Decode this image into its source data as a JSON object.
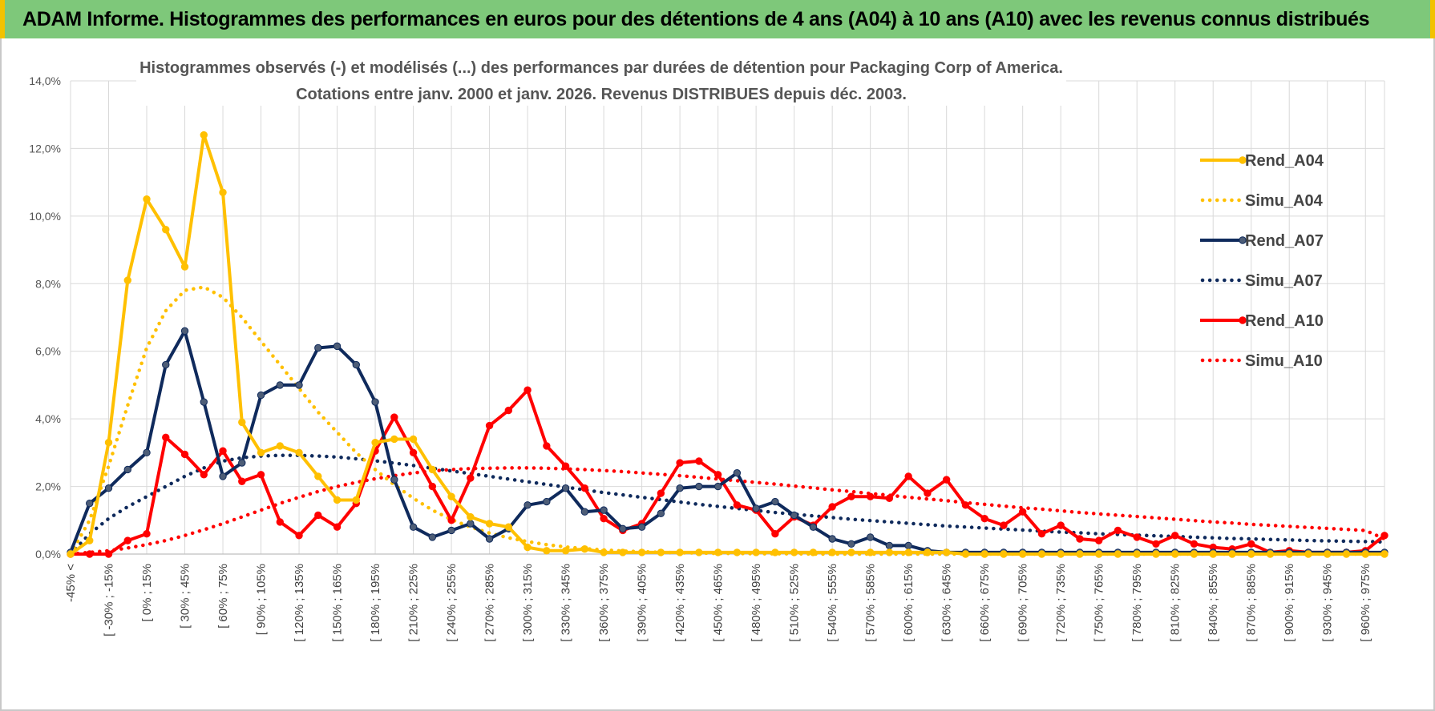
{
  "banner": {
    "title": "ADAM Informe. Histogrammes des performances en euros pour des détentions de 4 ans (A04) à 10 ans (A10) avec les revenus connus distribués"
  },
  "colors": {
    "banner_bg": "#7ec87a",
    "banner_accent": "#f2c200",
    "A04": "#ffc000",
    "A07": "#0f2a5c",
    "A10": "#ff0000",
    "grid": "#d9d9d9"
  },
  "chart_data": {
    "type": "line",
    "title_line1": "Histogrammes observés (-) et modélisés (...) des performances par durées de détention pour Packaging Corp of America.",
    "title_line2": "Cotations entre janv. 2000 et janv. 2026. Revenus DISTRIBUES depuis déc. 2003.",
    "ylim": [
      0,
      14
    ],
    "yticks": [
      "0,0%",
      "2,0%",
      "4,0%",
      "6,0%",
      "8,0%",
      "10,0%",
      "12,0%",
      "14,0%"
    ],
    "x_labels": [
      "-45% <",
      "[ -30% ; -15%",
      "[ 0% ; 15%",
      "[ 30% ; 45%",
      "[ 60% ; 75%",
      "[ 90% ; 105%",
      "[ 120% ; 135%",
      "[ 150% ; 165%",
      "[ 180% ; 195%",
      "[ 210% ; 225%",
      "[ 240% ; 255%",
      "[ 270% ; 285%",
      "[ 300% ; 315%",
      "[ 330% ; 345%",
      "[ 360% ; 375%",
      "[ 390% ; 405%",
      "[ 420% ; 435%",
      "[ 450% ; 465%",
      "[ 480% ; 495%",
      "[ 510% ; 525%",
      "[ 540% ; 555%",
      "[ 570% ; 585%",
      "[ 600% ; 615%",
      "[ 630% ; 645%",
      "[ 660% ; 675%",
      "[ 690% ; 705%",
      "[ 720% ; 735%",
      "[ 750% ; 765%",
      "[ 780% ; 795%",
      "[ 810% ; 825%",
      "[ 840% ; 855%",
      "[ 870% ; 885%",
      "[ 900% ; 915%",
      "[ 930% ; 945%",
      "[ 960% ; 975%"
    ],
    "n_points": 70,
    "series": [
      {
        "name": "Rend_A04",
        "style": "solid",
        "color": "#ffc000",
        "values": [
          0.0,
          0.4,
          3.3,
          8.1,
          10.5,
          9.6,
          8.5,
          12.4,
          10.7,
          3.9,
          3.0,
          3.2,
          3.0,
          2.3,
          1.6,
          1.6,
          3.3,
          3.4,
          3.4,
          2.5,
          1.7,
          1.1,
          0.9,
          0.8,
          0.2,
          0.1,
          0.1,
          0.15,
          0.05,
          0.05,
          0.05,
          0.05,
          0.05,
          0.05,
          0.05,
          0.05,
          0.05,
          0.05,
          0.05,
          0.05,
          0.05,
          0.05,
          0.05,
          0.05,
          0.05,
          0.05,
          0.05,
          0.0,
          0.0,
          0.0,
          0.0,
          0.0,
          0.0,
          0.0,
          0.0,
          0.0,
          0.0,
          0.0,
          0.0,
          0.0,
          0.0,
          0.0,
          0.0,
          0.0,
          0.0,
          0.0,
          0.0,
          0.0,
          0.0,
          0.0
        ]
      },
      {
        "name": "Simu_A04",
        "style": "dotted",
        "color": "#ffc000",
        "values": [
          0.0,
          1.0,
          2.6,
          4.4,
          6.1,
          7.2,
          7.8,
          7.9,
          7.6,
          7.0,
          6.3,
          5.6,
          4.9,
          4.2,
          3.6,
          3.0,
          2.5,
          2.05,
          1.65,
          1.3,
          1.02,
          0.8,
          0.62,
          0.48,
          0.37,
          0.28,
          0.21,
          0.16,
          0.12,
          0.09,
          0.07,
          0.05,
          0.04,
          0.03,
          0.02,
          0.02,
          0.01,
          0.01,
          0.01,
          0.0,
          0.0,
          0.0,
          0.0,
          0.0,
          0.0,
          0.0,
          0.0,
          0.0,
          0.0,
          0.0,
          0.0,
          0.0,
          0.0,
          0.0,
          0.0,
          0.0,
          0.0,
          0.0,
          0.0,
          0.0,
          0.0,
          0.0,
          0.0,
          0.0,
          0.0,
          0.0,
          0.0,
          0.0,
          0.0,
          0.0
        ]
      },
      {
        "name": "Rend_A07",
        "style": "solid",
        "color": "#0f2a5c",
        "values": [
          0.05,
          1.5,
          1.95,
          2.5,
          3.0,
          5.6,
          6.6,
          4.5,
          2.3,
          2.7,
          4.7,
          5.0,
          5.0,
          6.1,
          6.15,
          5.6,
          4.5,
          2.2,
          0.8,
          0.5,
          0.7,
          0.9,
          0.45,
          0.75,
          1.45,
          1.55,
          1.95,
          1.25,
          1.3,
          0.75,
          0.8,
          1.2,
          1.95,
          2.0,
          2.0,
          2.4,
          1.35,
          1.55,
          1.15,
          0.8,
          0.45,
          0.3,
          0.5,
          0.25,
          0.25,
          0.1,
          0.05,
          0.05,
          0.05,
          0.05,
          0.05,
          0.05,
          0.05,
          0.05,
          0.05,
          0.05,
          0.05,
          0.05,
          0.05,
          0.05,
          0.05,
          0.05,
          0.05,
          0.05,
          0.05,
          0.05,
          0.05,
          0.05,
          0.05,
          0.05
        ]
      },
      {
        "name": "Simu_A07",
        "style": "dotted",
        "color": "#0f2a5c",
        "values": [
          0.0,
          0.6,
          1.05,
          1.4,
          1.7,
          2.0,
          2.3,
          2.55,
          2.75,
          2.85,
          2.9,
          2.92,
          2.92,
          2.9,
          2.87,
          2.82,
          2.76,
          2.69,
          2.62,
          2.54,
          2.46,
          2.38,
          2.3,
          2.22,
          2.14,
          2.06,
          1.98,
          1.9,
          1.82,
          1.75,
          1.68,
          1.61,
          1.54,
          1.47,
          1.41,
          1.35,
          1.29,
          1.23,
          1.18,
          1.13,
          1.08,
          1.03,
          0.99,
          0.95,
          0.91,
          0.87,
          0.83,
          0.8,
          0.77,
          0.74,
          0.71,
          0.68,
          0.65,
          0.63,
          0.6,
          0.58,
          0.56,
          0.54,
          0.52,
          0.5,
          0.48,
          0.46,
          0.45,
          0.43,
          0.42,
          0.4,
          0.39,
          0.38,
          0.37,
          0.36
        ]
      },
      {
        "name": "Rend_A10",
        "style": "solid",
        "color": "#ff0000",
        "values": [
          0.0,
          0.0,
          0.0,
          0.4,
          0.6,
          3.45,
          2.95,
          2.35,
          3.05,
          2.15,
          2.35,
          0.95,
          0.55,
          1.15,
          0.8,
          1.5,
          3.05,
          4.05,
          3.0,
          2.0,
          1.0,
          2.25,
          3.8,
          4.25,
          4.85,
          3.2,
          2.6,
          1.95,
          1.05,
          0.7,
          0.9,
          1.8,
          2.7,
          2.75,
          2.35,
          1.45,
          1.3,
          0.6,
          1.1,
          0.85,
          1.4,
          1.7,
          1.7,
          1.65,
          2.3,
          1.8,
          2.2,
          1.45,
          1.05,
          0.85,
          1.25,
          0.6,
          0.85,
          0.45,
          0.4,
          0.7,
          0.5,
          0.3,
          0.55,
          0.3,
          0.2,
          0.15,
          0.3,
          0.05,
          0.1,
          0.05,
          0.05,
          0.05,
          0.1,
          0.55
        ]
      },
      {
        "name": "Simu_A10",
        "style": "dotted",
        "color": "#ff0000",
        "values": [
          0.0,
          0.05,
          0.1,
          0.18,
          0.28,
          0.4,
          0.55,
          0.72,
          0.9,
          1.1,
          1.3,
          1.5,
          1.68,
          1.85,
          2.0,
          2.12,
          2.23,
          2.32,
          2.4,
          2.46,
          2.5,
          2.53,
          2.54,
          2.55,
          2.55,
          2.54,
          2.52,
          2.5,
          2.47,
          2.44,
          2.4,
          2.36,
          2.32,
          2.27,
          2.22,
          2.17,
          2.12,
          2.07,
          2.01,
          1.96,
          1.9,
          1.85,
          1.79,
          1.74,
          1.68,
          1.63,
          1.58,
          1.52,
          1.47,
          1.42,
          1.37,
          1.33,
          1.28,
          1.23,
          1.19,
          1.15,
          1.11,
          1.07,
          1.03,
          0.99,
          0.95,
          0.92,
          0.88,
          0.85,
          0.82,
          0.79,
          0.76,
          0.73,
          0.7,
          0.45
        ]
      }
    ],
    "legend": [
      "Rend_A04",
      "Simu_A04",
      "Rend_A07",
      "Simu_A07",
      "Rend_A10",
      "Simu_A10"
    ],
    "legend_position": "right"
  }
}
